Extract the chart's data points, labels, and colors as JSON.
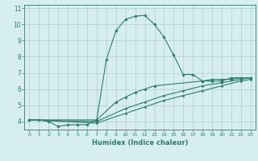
{
  "xlabel": "Humidex (Indice chaleur)",
  "ylabel": "",
  "bg_color": "#d6eef2",
  "grid_color": "#b0cdd4",
  "line_color": "#2e7d6e",
  "xlim": [
    -0.5,
    23.5
  ],
  "ylim": [
    3.5,
    11.2
  ],
  "xticks": [
    0,
    1,
    2,
    3,
    4,
    5,
    6,
    7,
    8,
    9,
    10,
    11,
    12,
    13,
    14,
    15,
    16,
    17,
    18,
    19,
    20,
    21,
    22,
    23
  ],
  "yticks": [
    4,
    5,
    6,
    7,
    8,
    9,
    10,
    11
  ],
  "curve1_x": [
    0,
    1,
    2,
    3,
    4,
    5,
    6,
    7,
    8,
    9,
    10,
    11,
    12,
    13,
    14,
    15,
    16,
    17,
    18,
    19,
    20,
    21,
    22,
    23
  ],
  "curve1_y": [
    4.1,
    4.1,
    4.0,
    3.7,
    3.8,
    3.8,
    3.8,
    4.1,
    7.8,
    9.6,
    10.3,
    10.5,
    10.55,
    10.0,
    9.2,
    8.1,
    6.9,
    6.9,
    6.5,
    6.5,
    6.5,
    6.7,
    6.7,
    6.7
  ],
  "curve2_x": [
    0,
    7,
    9,
    10,
    11,
    12,
    13,
    18,
    19,
    20,
    21,
    22,
    23
  ],
  "curve2_y": [
    4.1,
    4.1,
    5.2,
    5.5,
    5.8,
    6.0,
    6.2,
    6.5,
    6.6,
    6.6,
    6.6,
    6.7,
    6.7
  ],
  "curve3_x": [
    0,
    7,
    10,
    12,
    14,
    16,
    18,
    20,
    22,
    23
  ],
  "curve3_y": [
    4.1,
    4.0,
    4.8,
    5.2,
    5.6,
    5.9,
    6.2,
    6.4,
    6.6,
    6.7
  ],
  "curve4_x": [
    0,
    7,
    10,
    12,
    14,
    16,
    18,
    20,
    22,
    23
  ],
  "curve4_y": [
    4.1,
    3.9,
    4.5,
    4.9,
    5.3,
    5.6,
    5.9,
    6.2,
    6.5,
    6.6
  ]
}
